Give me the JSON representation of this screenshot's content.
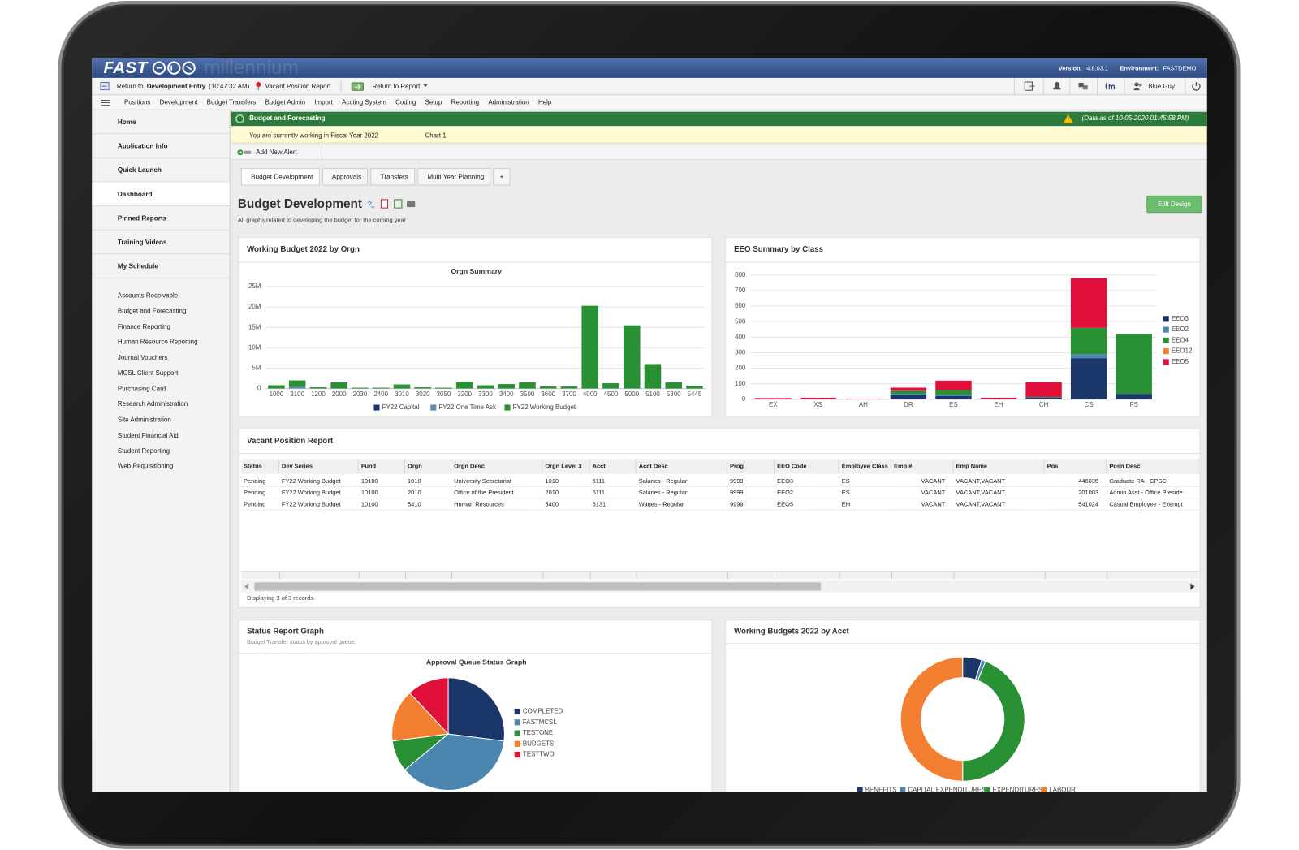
{
  "header": {
    "brand": "FAST",
    "watermark": "millennium",
    "version_label": "Version:",
    "version": "4.8.03.1",
    "environment_label": "Environment:",
    "environment": "FASTDEMO"
  },
  "toolbar": {
    "return_prefix": "Return to",
    "return_target": "Development Entry",
    "return_time": "(10:47:32 AM)",
    "pinned_report": "Vacant Position Report",
    "return_to_report": "Return to Report",
    "user": "Blue Guy"
  },
  "menu": [
    "Positions",
    "Development",
    "Budget Transfers",
    "Budget Admin",
    "Import",
    "Accting System",
    "Coding",
    "Setup",
    "Reporting",
    "Administration",
    "Help"
  ],
  "sidebar": {
    "main": [
      "Home",
      "Application Info",
      "Quick Launch",
      "Dashboard",
      "Pinned Reports",
      "Training Videos",
      "My Schedule"
    ],
    "links": [
      "Accounts Receivable",
      "Budget and Forecasting",
      "Finance Reporting",
      "Human Resource Reporting",
      "Journal Vouchers",
      "MCSL Client Support",
      "Purchasing Card",
      "Research Administration",
      "Site Administration",
      "Student Financial Aid",
      "Student Reporting",
      "Web Requisitioning"
    ]
  },
  "banner": {
    "title": "Budget and Forecasting",
    "data_as_of": "(Data as of 10-05-2020 01:45:58 PM)"
  },
  "notice": {
    "text": "You are currently working in Fiscal Year 2022",
    "chart": "Chart 1"
  },
  "alert": "Add New Alert",
  "tabs": [
    "Budget Development",
    "Approvals",
    "Transfers",
    "Multi Year Planning",
    "+"
  ],
  "page": {
    "title": "Budget Development",
    "subtitle": "All graphs related to developing the budget for the coming year",
    "edit_button": "Edit Design"
  },
  "panels": {
    "orgn": "Working Budget 2022 by Orgn",
    "eeo": "EEO Summary by Class",
    "vacant": "Vacant Position Report",
    "status": "Status Report Graph",
    "status_subtitle": "Budget Transfer status by approval queue.",
    "acct": "Working Budgets 2022 by Acct"
  },
  "table": {
    "columns": [
      "Status",
      "Dev Series",
      "Fund",
      "Orgn",
      "Orgn Desc",
      "Orgn Level 3",
      "Acct",
      "Acct Desc",
      "Prog",
      "EEO Code",
      "Employee Class",
      "Emp #",
      "Emp Name",
      "Pos",
      "Posn Desc"
    ],
    "rows": [
      [
        "Pending",
        "FY22 Working Budget",
        "10100",
        "1010",
        "University Secretariat",
        "1010",
        "6111",
        "Salaries - Regular",
        "9999",
        "EEO3",
        "ES",
        "VACANT",
        "VACANT,VACANT",
        "446035",
        "Graduate RA - CPSC"
      ],
      [
        "Pending",
        "FY22 Working Budget",
        "10100",
        "2010",
        "Office of the President",
        "2010",
        "6111",
        "Salaries - Regular",
        "9999",
        "EEO2",
        "ES",
        "VACANT",
        "VACANT,VACANT",
        "201003",
        "Admin Asst - Office Preside"
      ],
      [
        "Pending",
        "FY22 Working Budget",
        "10100",
        "5410",
        "Human Resources",
        "5400",
        "6131",
        "Wages - Regular",
        "9999",
        "EEO5",
        "EH",
        "VACANT",
        "VACANT,VACANT",
        "541024",
        "Casual Employee - Exempt"
      ]
    ],
    "footer": "Displaying 3 of 3 records."
  },
  "chart_data": [
    {
      "type": "bar",
      "stacked": true,
      "title": "Orgn Summary",
      "categories": [
        "1000",
        "3100",
        "1200",
        "2000",
        "2030",
        "2400",
        "3010",
        "3020",
        "3050",
        "3200",
        "3300",
        "3400",
        "3500",
        "3600",
        "3700",
        "4000",
        "4500",
        "5000",
        "5100",
        "5300",
        "5445"
      ],
      "series": [
        {
          "name": "FY22 Capital",
          "color": "#1b3668",
          "values": [
            0,
            0,
            0,
            0,
            0,
            0,
            0,
            0,
            0,
            0,
            0,
            0,
            0,
            0,
            0,
            0,
            0,
            0,
            0,
            0,
            0
          ]
        },
        {
          "name": "FY22 One Time Ask",
          "color": "#5c8bb5",
          "values": [
            0,
            400000,
            0,
            0,
            0,
            0,
            0,
            0,
            0,
            0,
            0,
            0,
            0,
            0,
            0,
            0,
            0,
            0,
            0,
            0,
            0
          ]
        },
        {
          "name": "FY22 Working Budget",
          "color": "#2a9034",
          "values": [
            800000,
            1600000,
            300000,
            1500000,
            200000,
            200000,
            1000000,
            300000,
            200000,
            1700000,
            800000,
            1100000,
            1500000,
            500000,
            500000,
            20300000,
            1300000,
            15500000,
            6000000,
            1500000,
            700000
          ]
        }
      ],
      "ylim": [
        0,
        25000000
      ],
      "yticks": [
        0,
        {
          "value": 5000000,
          "label": "5M"
        },
        {
          "value": 10000000,
          "label": "10M"
        },
        {
          "value": 15000000,
          "label": "15M"
        },
        {
          "value": 20000000,
          "label": "20M"
        },
        {
          "value": 25000000,
          "label": "25M"
        }
      ],
      "grid": true,
      "legend": "bottom"
    },
    {
      "type": "bar",
      "stacked": true,
      "categories": [
        "EX",
        "XS",
        "AH",
        "DR",
        "ES",
        "EH",
        "CH",
        "CS",
        "FS"
      ],
      "series": [
        {
          "name": "EEO3",
          "color": "#1b3668",
          "values": [
            0,
            0,
            0,
            30,
            20,
            0,
            10,
            265,
            35
          ]
        },
        {
          "name": "EEO2",
          "color": "#4a86b0",
          "values": [
            0,
            0,
            0,
            5,
            10,
            0,
            0,
            25,
            0
          ]
        },
        {
          "name": "EEO4",
          "color": "#2a9034",
          "values": [
            0,
            0,
            0,
            20,
            30,
            0,
            5,
            170,
            385
          ]
        },
        {
          "name": "EEO12",
          "color": "#f47f30",
          "values": [
            0,
            0,
            0,
            0,
            0,
            0,
            0,
            0,
            0
          ]
        },
        {
          "name": "EEO5",
          "color": "#e0103a",
          "values": [
            8,
            10,
            3,
            20,
            60,
            10,
            95,
            320,
            0
          ]
        }
      ],
      "ylim": [
        0,
        800
      ],
      "yticks": [
        0,
        100,
        200,
        300,
        400,
        500,
        600,
        700,
        800
      ],
      "grid": true,
      "legend": "right"
    },
    {
      "type": "pie",
      "title": "Approval Queue Status Graph",
      "categories": [
        "COMPLETED",
        "FASTMCSL",
        "TESTONE",
        "BUDGETS",
        "TESTTWO"
      ],
      "values": [
        27,
        37,
        9,
        15,
        12
      ],
      "colors": [
        "#1b3668",
        "#4a86b0",
        "#2a9034",
        "#f47f30",
        "#e0103a"
      ],
      "legend": "right"
    },
    {
      "type": "donut",
      "categories": [
        "BENEFITS",
        "CAPITAL EXPENDITURES",
        "EXPENDITURES",
        "LABOUR"
      ],
      "values": [
        5,
        1,
        44,
        50
      ],
      "colors": [
        "#1b3668",
        "#4a86b0",
        "#2a9034",
        "#f47f30"
      ],
      "legend": "bottom"
    }
  ]
}
